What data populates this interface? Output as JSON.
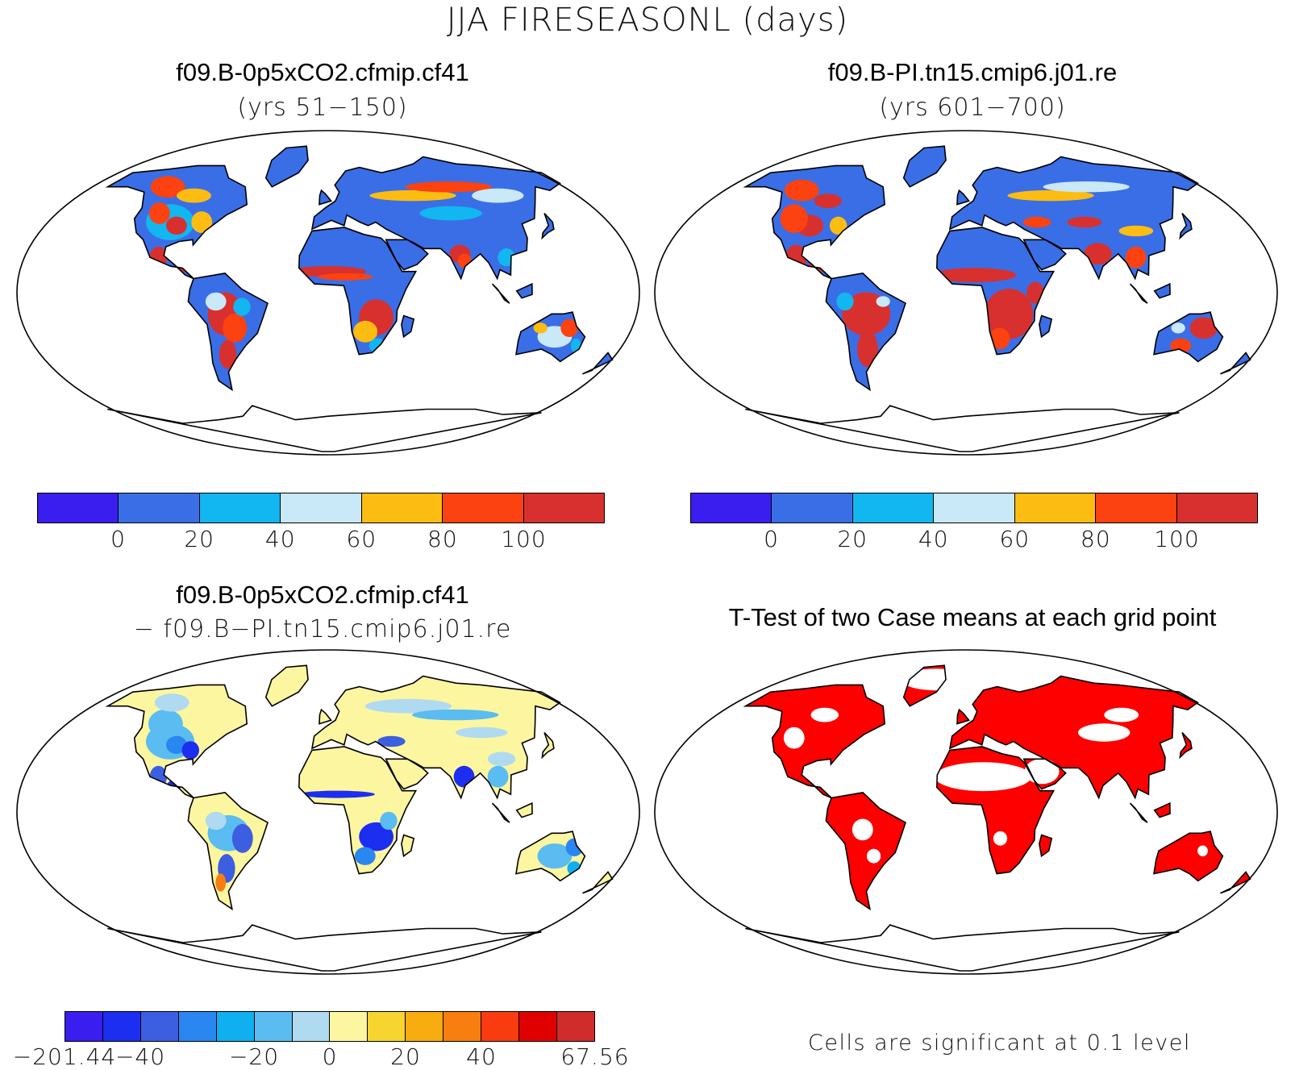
{
  "title": "JJA FIRESEASONL (days)",
  "panels": [
    {
      "title": "f09.B-0p5xCO2.cfmip.cf41",
      "subtitle": "(yrs 51−150)"
    },
    {
      "title": "f09.B-PI.tn15.cmip6.j01.re",
      "subtitle": "(yrs 601−700)"
    },
    {
      "title": "f09.B-0p5xCO2.cfmip.cf41",
      "subtitle": "− f09.B−PI.tn15.cmip6.j01.re"
    },
    {
      "title": "T-Test of two Case means at each grid point",
      "subtitle": ""
    }
  ],
  "colorbar_abs": {
    "colors": [
      "#3a1ef0",
      "#3a6ee6",
      "#12b6f0",
      "#c9e8f8",
      "#fcbc12",
      "#fc4210",
      "#d8302e"
    ],
    "labels": [
      "0",
      "20",
      "40",
      "60",
      "80",
      "100"
    ]
  },
  "colorbar_diff": {
    "colors": [
      "#3a1ef0",
      "#1c2ef0",
      "#3c5ee0",
      "#2a86f0",
      "#10b0f0",
      "#5abcf0",
      "#b0daf0",
      "#fcf6a0",
      "#f8d430",
      "#f8ac10",
      "#f87e10",
      "#f83c10",
      "#e00000",
      "#d02c2c"
    ],
    "labels": [
      "−201.44",
      "−40",
      "−20",
      "0",
      "20",
      "40",
      "67.56"
    ]
  },
  "significance_note": "Cells are significant at 0.1 level",
  "significance_color": "#ff0000"
}
